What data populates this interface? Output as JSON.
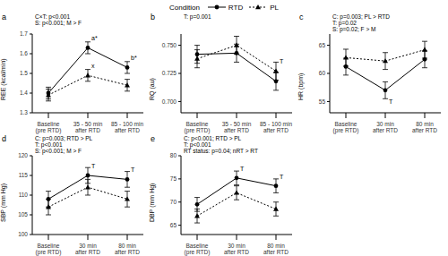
{
  "legend_title": "Condition",
  "chart_data": [
    {
      "type": "line",
      "title": "a",
      "y_label": "REE (kcal/min)",
      "annotations": [
        "C×T: p<0.001",
        "S: p<0.001; M > F"
      ],
      "categories": [
        "Baseline (pre RTD)",
        "35 - 50 min after RTD",
        "85 - 100 min after RTD"
      ],
      "ylim": [
        1.3,
        1.7
      ],
      "yticks": [
        1.3,
        1.4,
        1.5,
        1.6,
        1.7
      ],
      "series": [
        {
          "name": "RTD",
          "color": "#000000",
          "line_style": "solid",
          "marker": "circle",
          "values": [
            1.4,
            1.63,
            1.53
          ],
          "errors": [
            0.03,
            0.03,
            0.03
          ]
        },
        {
          "name": "PL",
          "color": "#000000",
          "line_style": "dotted",
          "marker": "triangle",
          "values": [
            1.39,
            1.49,
            1.44
          ],
          "errors": [
            0.03,
            0.03,
            0.03
          ]
        }
      ],
      "point_labels": [
        {
          "text": "a*",
          "series": "RTD",
          "index": 1
        },
        {
          "text": "b*",
          "series": "RTD",
          "index": 2
        },
        {
          "text": "x",
          "series": "PL",
          "index": 1
        }
      ]
    },
    {
      "type": "line",
      "title": "b",
      "y_label": "RQ (au)",
      "annotations": [
        "T: p=0.001"
      ],
      "categories": [
        "Baseline (pre RTD)",
        "35 - 50 min after RTD",
        "85 - 100 min after RTD"
      ],
      "ylim": [
        0.69,
        0.76
      ],
      "yticks": [
        {
          "value": 0.7,
          "label": "0.700"
        },
        {
          "value": 0.725,
          "label": "0.725"
        },
        {
          "value": 0.75,
          "label": "0.750"
        }
      ],
      "series": [
        {
          "name": "RTD",
          "color": "#000000",
          "line_style": "solid",
          "marker": "circle",
          "values": [
            0.742,
            0.743,
            0.718
          ],
          "errors": [
            0.008,
            0.008,
            0.008
          ]
        },
        {
          "name": "PL",
          "color": "#000000",
          "line_style": "dotted",
          "marker": "triangle",
          "values": [
            0.738,
            0.75,
            0.727
          ],
          "errors": [
            0.008,
            0.008,
            0.008
          ]
        }
      ],
      "point_labels": [
        {
          "text": "T",
          "series": "PL",
          "index": 2
        }
      ]
    },
    {
      "type": "line",
      "title": "c",
      "y_label": "HR (bpm)",
      "annotations": [
        "C: p=0.003; PL > RTD",
        "T: p=0.02",
        "S: p=0.02; F > M"
      ],
      "categories": [
        "Baseline (pre RTD)",
        "30 min after RTD",
        "80 min after RTD"
      ],
      "ylim": [
        53,
        67
      ],
      "yticks": [
        55,
        60,
        65
      ],
      "series": [
        {
          "name": "RTD",
          "color": "#000000",
          "line_style": "solid",
          "marker": "circle",
          "values": [
            61.2,
            57,
            62.5
          ],
          "errors": [
            1.5,
            1.5,
            1.5
          ]
        },
        {
          "name": "PL",
          "color": "#000000",
          "line_style": "dotted",
          "marker": "triangle",
          "values": [
            62.8,
            62.2,
            64.2
          ],
          "errors": [
            1.5,
            1.5,
            1.5
          ]
        }
      ],
      "point_labels": [
        {
          "text": "T",
          "series": "RTD",
          "index": 1
        }
      ]
    },
    {
      "type": "line",
      "title": "d",
      "y_label": "SBP (mm Hg)",
      "annotations": [
        "C: p=0.003; RTD > PL",
        "T: p<0.001",
        "S: p<0.001; M > F"
      ],
      "categories": [
        "Baseline (pre RTD)",
        "30 min after RTD",
        "80 min after RTD"
      ],
      "ylim": [
        100,
        120
      ],
      "yticks": [
        100,
        105,
        110,
        115,
        120
      ],
      "series": [
        {
          "name": "RTD",
          "color": "#000000",
          "line_style": "solid",
          "marker": "circle",
          "values": [
            109,
            115,
            114
          ],
          "errors": [
            2,
            2,
            2
          ]
        },
        {
          "name": "PL",
          "color": "#000000",
          "line_style": "dotted",
          "marker": "triangle",
          "values": [
            107,
            112,
            109
          ],
          "errors": [
            2,
            2,
            2
          ]
        }
      ],
      "point_labels": [
        {
          "text": "T",
          "series": "RTD",
          "index": 1
        },
        {
          "text": "T",
          "series": "RTD",
          "index": 2
        }
      ]
    },
    {
      "type": "line",
      "title": "e",
      "y_label": "DBP (mm Hg)",
      "annotations": [
        "C: p<0.001; RTD > PL",
        "T: p<0.001",
        "RT status: p=0.04; nRT > RT"
      ],
      "categories": [
        "Baseline (pre RTD)",
        "30 min after RTD",
        "80 min after RTD"
      ],
      "ylim": [
        63,
        80
      ],
      "yticks": [
        65,
        70,
        75,
        80
      ],
      "series": [
        {
          "name": "RTD",
          "color": "#000000",
          "line_style": "solid",
          "marker": "circle",
          "values": [
            69.5,
            75.2,
            73.5
          ],
          "errors": [
            1.5,
            1.5,
            1.5
          ]
        },
        {
          "name": "PL",
          "color": "#000000",
          "line_style": "dotted",
          "marker": "triangle",
          "values": [
            67,
            72,
            68.5
          ],
          "errors": [
            1.5,
            1.5,
            1.5
          ]
        }
      ],
      "point_labels": [
        {
          "text": "T",
          "series": "RTD",
          "index": 1
        },
        {
          "text": "T",
          "series": "RTD",
          "index": 2
        }
      ]
    }
  ]
}
